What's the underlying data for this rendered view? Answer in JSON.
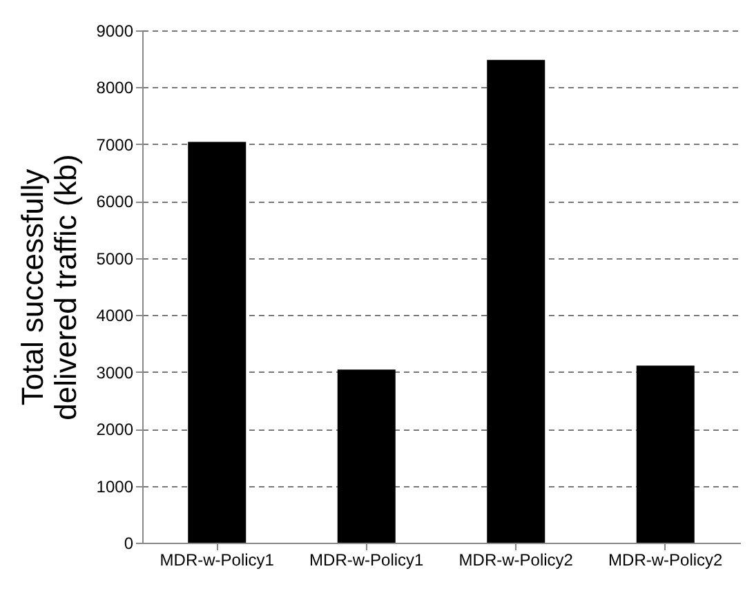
{
  "chart_data": {
    "type": "bar",
    "ylabel": "Total successfully\ndelivered traffic (kb)",
    "categories": [
      "MDR-w-Policy1",
      "MDR-w-Policy1",
      "MDR-w-Policy2",
      "MDR-w-Policy2"
    ],
    "values": [
      7040,
      3040,
      8480,
      3110
    ],
    "color": "#000000",
    "ylim": [
      0,
      9000
    ],
    "yticks": [
      0,
      1000,
      2000,
      3000,
      4000,
      5000,
      6000,
      7000,
      8000,
      9000
    ],
    "grid": "y"
  }
}
